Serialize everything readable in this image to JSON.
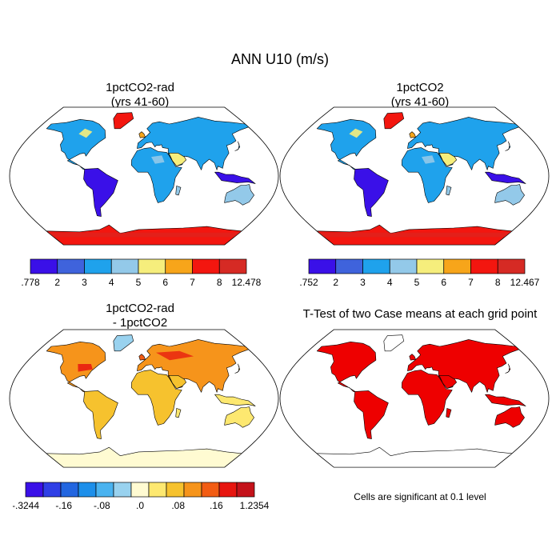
{
  "title": "ANN U10 (m/s)",
  "panels": [
    {
      "title_line1": "1pctCO2-rad",
      "title_line2": "(yrs 41-60)"
    },
    {
      "title_line1": "1pctCO2",
      "title_line2": "(yrs 41-60)"
    },
    {
      "title_line1": "1pctCO2-rad",
      "title_line2": "- 1pctCO2"
    },
    {
      "title_line1": "T-Test of two Case means at each grid point"
    }
  ],
  "colorbars": [
    {
      "labels": [
        ".778",
        "2",
        "3",
        "4",
        "5",
        "6",
        "7",
        "8",
        "12.478"
      ],
      "colors": [
        "#3a10e8",
        "#3f63dc",
        "#1fa2ec",
        "#93c9e9",
        "#f6ee7c",
        "#f7a51a",
        "#f3160f",
        "#d62a24"
      ]
    },
    {
      "labels": [
        ".752",
        "2",
        "3",
        "4",
        "5",
        "6",
        "7",
        "8",
        "12.467"
      ],
      "colors": [
        "#3a10e8",
        "#3f63dc",
        "#1fa2ec",
        "#93c9e9",
        "#f6ee7c",
        "#f7a51a",
        "#f3160f",
        "#d62a24"
      ]
    },
    {
      "labels": [
        "-.3244",
        "-.16",
        "-.08",
        ".0",
        ".08",
        ".16",
        "1.2354"
      ],
      "colors": [
        "#3a10e8",
        "#2f3fe6",
        "#2366e0",
        "#1d8fea",
        "#4ab3f0",
        "#99d2ef",
        "#fffbd2",
        "#fde870",
        "#f6c22e",
        "#f6941b",
        "#f25c13",
        "#e7150f",
        "#c4121a"
      ]
    }
  ],
  "significance_note": "Cells are significant at 0.1 level",
  "significance_color": "#ee0000"
}
